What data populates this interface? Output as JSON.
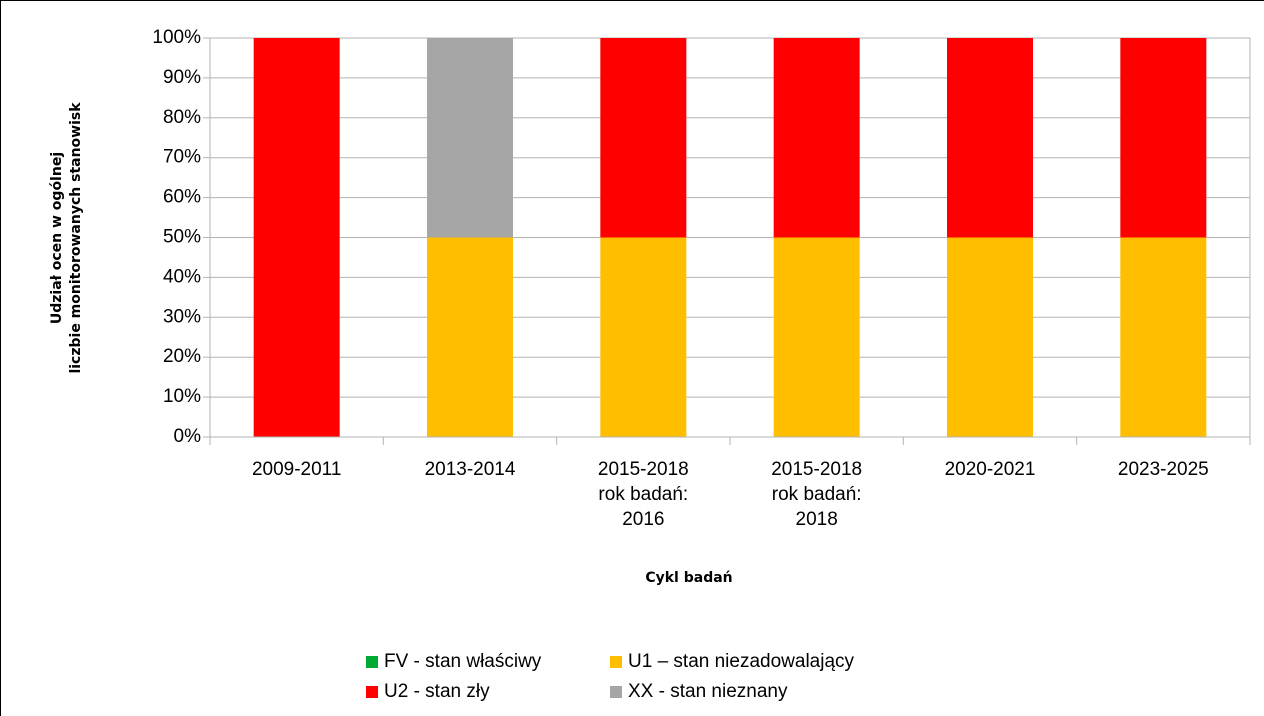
{
  "chart_data": {
    "type": "bar",
    "stacked": true,
    "y_label": "Udział ocen w ogólnej liczbie monitorowanych stanowisk",
    "x_label": "Cykl badań",
    "categories": [
      [
        "2009-2011"
      ],
      [
        "2013-2014"
      ],
      [
        "2015-2018",
        "rok badań:",
        "2016"
      ],
      [
        "2015-2018",
        "rok badań:",
        "2018"
      ],
      [
        "2020-2021"
      ],
      [
        "2023-2025"
      ]
    ],
    "series": [
      {
        "name": "FV - stan właściwy",
        "color": "#00a933",
        "values": [
          0,
          0,
          0,
          0,
          0,
          0
        ]
      },
      {
        "name": "U1 – stan niezadowalający",
        "color": "#ffbf00",
        "values": [
          0,
          50,
          50,
          50,
          50,
          50
        ]
      },
      {
        "name": "U2 - stan zły",
        "color": "#ff0000",
        "values": [
          100,
          0,
          50,
          50,
          50,
          50
        ]
      },
      {
        "name": "XX - stan nieznany",
        "color": "#a6a6a6",
        "values": [
          0,
          50,
          0,
          0,
          0,
          0
        ]
      }
    ],
    "ylim": [
      0,
      100
    ],
    "yticks": [
      {
        "value": 0,
        "label": "0%"
      },
      {
        "value": 10,
        "label": "10%"
      },
      {
        "value": 20,
        "label": "20%"
      },
      {
        "value": 30,
        "label": "30%"
      },
      {
        "value": 40,
        "label": "40%"
      },
      {
        "value": 50,
        "label": "50%"
      },
      {
        "value": 60,
        "label": "60%"
      },
      {
        "value": 70,
        "label": "70%"
      },
      {
        "value": 80,
        "label": "80%"
      },
      {
        "value": 90,
        "label": "90%"
      },
      {
        "value": 100,
        "label": "100%"
      }
    ],
    "grid": true,
    "legend": "bottom"
  }
}
